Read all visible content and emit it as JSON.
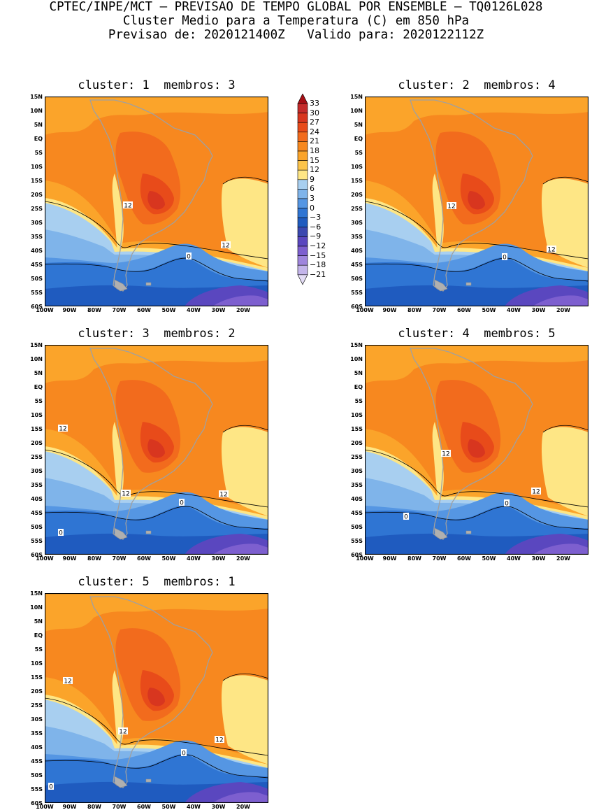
{
  "header": {
    "line1": "CPTEC/INPE/MCT — PREVISAO DE TEMPO GLOBAL POR ENSEMBLE — TQ0126L028",
    "line2": "Cluster Medio para a Temperatura (C) em 850 hPa",
    "line3": "Previsao de: 2020121400Z   Valido para: 2020122112Z"
  },
  "axes": {
    "lat_labels": [
      "15N",
      "10N",
      "5N",
      "EQ",
      "5S",
      "10S",
      "15S",
      "20S",
      "25S",
      "30S",
      "35S",
      "40S",
      "45S",
      "50S",
      "55S",
      "60S"
    ],
    "lon_labels": [
      "100W",
      "90W",
      "80W",
      "70W",
      "60W",
      "50W",
      "40W",
      "30W",
      "20W"
    ]
  },
  "panels": [
    {
      "title": "cluster: 1  membros: 3",
      "labels": [
        "12",
        "12",
        "0"
      ]
    },
    {
      "title": "cluster: 2  membros: 4",
      "labels": [
        "12",
        "12",
        "0"
      ]
    },
    {
      "title": "cluster: 3  membros: 2",
      "labels": [
        "12",
        "12",
        "12",
        "0",
        "0"
      ]
    },
    {
      "title": "cluster: 4  membros: 5",
      "labels": [
        "12",
        "12",
        "0",
        "0"
      ]
    },
    {
      "title": "cluster: 5  membros: 1",
      "labels": [
        "12",
        "12",
        "12",
        "0",
        "0"
      ]
    }
  ],
  "colorbar": {
    "labels": [
      "33",
      "30",
      "27",
      "24",
      "21",
      "18",
      "15",
      "12",
      "9",
      "6",
      "3",
      "0",
      "−3",
      "−6",
      "−9",
      "−12",
      "−15",
      "−18",
      "−21"
    ],
    "colors": [
      "#a50f15",
      "#c42b2b",
      "#d8361f",
      "#e84b1a",
      "#f26b1d",
      "#f7881f",
      "#fba42a",
      "#fcc44a",
      "#fee685",
      "#a8cff0",
      "#7fb4ea",
      "#5596e3",
      "#2f75d3",
      "#1f5bbf",
      "#3b48b0",
      "#5a47bf",
      "#7d5fcf",
      "#9f85dd",
      "#c3b4ea",
      "#e3dcf5"
    ]
  }
}
